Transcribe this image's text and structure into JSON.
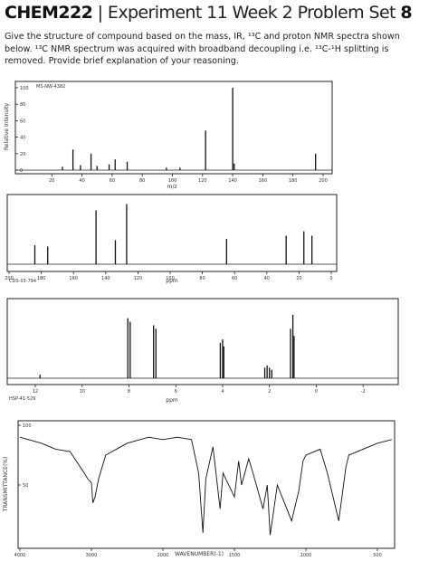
{
  "header": {
    "course": "CHEM222",
    "separator": "|",
    "title": "Experiment 11 Week 2 Problem Set",
    "number": "8"
  },
  "instructions": "Give the structure of compound based on the mass, IR, ¹³C and proton NMR spectra shown below. ¹³C NMR spectrum was acquired with broadband decoupling i.e. ¹³C-¹H splitting is removed. Provide brief explanation of your reasoning.",
  "chart_data": [
    {
      "type": "stick",
      "code": "MS-NW-4382",
      "y_label": "Relative Intensity",
      "x_label": "m/z",
      "xlim": [
        0,
        200
      ],
      "xticks": [
        20,
        40,
        60,
        80,
        100,
        120,
        140,
        160,
        180,
        200
      ],
      "ylim": [
        0,
        100
      ],
      "yticks": [
        0,
        20,
        40,
        60,
        80,
        100
      ],
      "x": [
        27,
        34,
        39,
        46,
        50,
        58,
        62,
        70,
        96,
        105,
        122,
        140,
        141,
        195
      ],
      "values": [
        4,
        25,
        6,
        20,
        5,
        7,
        13,
        10,
        3,
        3,
        48,
        100,
        8,
        20
      ]
    },
    {
      "type": "stick",
      "code": "CDS-03-794",
      "x_label": "ppm",
      "xlim": [
        200,
        0
      ],
      "xticks": [
        200,
        180,
        160,
        140,
        120,
        100,
        80,
        60,
        40,
        20,
        0
      ],
      "ylim": [
        0,
        100
      ],
      "x": [
        184,
        176,
        146,
        134,
        127,
        65,
        28,
        17,
        12
      ],
      "values": [
        30,
        28,
        85,
        38,
        95,
        40,
        45,
        52,
        45
      ]
    },
    {
      "type": "stick",
      "code": "HSP-41-529",
      "x_label": "ppm",
      "xlim": [
        13.2,
        -3.5
      ],
      "xticks": [
        12,
        10,
        8,
        6,
        4,
        2,
        0,
        -2
      ],
      "ylim": [
        0,
        100
      ],
      "x": [
        11.8,
        8.05,
        7.95,
        6.95,
        6.85,
        4.1,
        4.0,
        3.95,
        2.2,
        2.1,
        2.0,
        1.9,
        1.1,
        1.0,
        0.95
      ],
      "values": [
        5,
        85,
        80,
        75,
        70,
        50,
        55,
        45,
        15,
        18,
        15,
        12,
        70,
        90,
        60
      ]
    },
    {
      "type": "line",
      "y_label": "TRANSMITTANCE(%)",
      "x_label": "WAVENUMBER(-1)",
      "xlim": [
        4000,
        400
      ],
      "xticks": [
        4000,
        3000,
        2000,
        1500,
        1000,
        500
      ],
      "ylim": [
        0,
        100
      ],
      "yticks": [
        50,
        100
      ],
      "x": [
        4000,
        3700,
        3500,
        3300,
        3100,
        3050,
        3000,
        2980,
        2950,
        2900,
        2800,
        2500,
        2200,
        2000,
        1900,
        1800,
        1750,
        1720,
        1700,
        1650,
        1600,
        1580,
        1500,
        1470,
        1450,
        1400,
        1370,
        1300,
        1270,
        1250,
        1200,
        1150,
        1100,
        1050,
        1020,
        1000,
        900,
        850,
        770,
        720,
        700,
        600,
        500,
        400
      ],
      "values": [
        90,
        85,
        80,
        78,
        60,
        55,
        52,
        35,
        40,
        55,
        75,
        85,
        90,
        88,
        90,
        88,
        60,
        10,
        55,
        82,
        30,
        60,
        40,
        70,
        50,
        72,
        60,
        30,
        50,
        8,
        50,
        35,
        20,
        45,
        70,
        75,
        80,
        60,
        20,
        65,
        75,
        80,
        85,
        88
      ]
    }
  ]
}
